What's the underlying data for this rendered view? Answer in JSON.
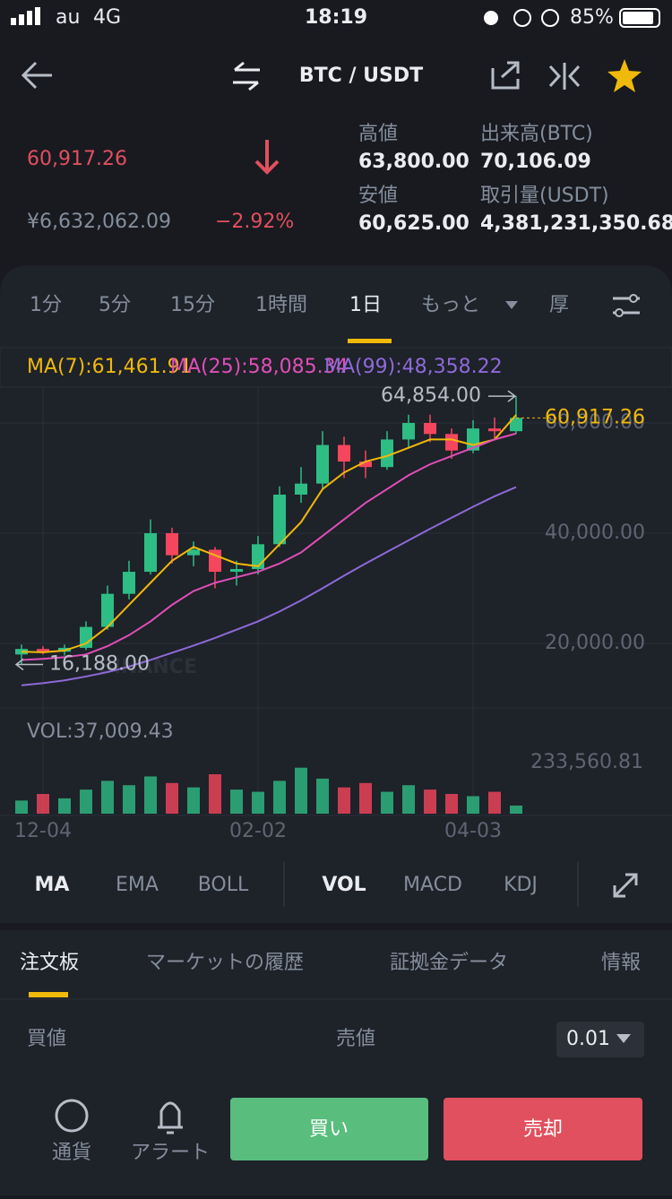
{
  "status_bar": {
    "carrier": "au",
    "network": "4G",
    "time": "18:19",
    "battery": "85%"
  },
  "header": {
    "pair": "BTC / USDT"
  },
  "ticker": {
    "price": "60,917.26",
    "jpy": "¥6,632,062.09",
    "change": "−2.92%",
    "stats": [
      {
        "label": "高値",
        "value": "63,800.00"
      },
      {
        "label": "出来高(BTC)",
        "value": "70,106.09"
      },
      {
        "label": "安値",
        "value": "60,625.00"
      },
      {
        "label": "取引量(USDT)",
        "value": "4,381,231,350.68"
      }
    ]
  },
  "intervals": [
    "1分",
    "5分",
    "15分",
    "1時間",
    "1日",
    "もっと",
    "厚"
  ],
  "chart_data": {
    "type": "candlestick",
    "categories": [
      null,
      "12-04",
      null,
      null,
      null,
      null,
      null,
      null,
      null,
      null,
      null,
      "02-02",
      null,
      null,
      null,
      null,
      null,
      null,
      null,
      null,
      null,
      "04-03",
      null,
      null
    ],
    "open": [
      18000,
      19000,
      18500,
      19200,
      23000,
      29000,
      33000,
      40000,
      36000,
      37000,
      33000,
      33500,
      38000,
      47000,
      49000,
      56000,
      53000,
      52000,
      57000,
      60000,
      58000,
      55000,
      59000,
      58500
    ],
    "high": [
      19800,
      19500,
      19800,
      24000,
      30500,
      35000,
      42500,
      41000,
      38500,
      37500,
      35000,
      39500,
      48500,
      52000,
      58500,
      57500,
      55000,
      58500,
      61500,
      61500,
      59000,
      60500,
      61000,
      64854
    ],
    "low": [
      16188,
      18000,
      17800,
      18800,
      22500,
      28000,
      32500,
      34500,
      34000,
      30000,
      30500,
      32500,
      37500,
      45500,
      48000,
      50000,
      50000,
      51500,
      55500,
      56500,
      53500,
      54500,
      57000,
      58000
    ],
    "close": [
      19000,
      18500,
      19200,
      23000,
      29000,
      33000,
      40000,
      36000,
      37000,
      33000,
      33500,
      38000,
      47000,
      49000,
      56000,
      53000,
      52000,
      57000,
      60000,
      58000,
      55000,
      59000,
      58500,
      60917.26
    ],
    "up_color": "#2ebd85",
    "down_color": "#f6465d",
    "ylim": [
      8300,
      66500
    ],
    "yticks": [
      {
        "value": 20000,
        "label": "20,000.00"
      },
      {
        "value": 40000,
        "label": "40,000.00"
      },
      {
        "value": 60000,
        "label": "60,000.00"
      }
    ],
    "ma": [
      {
        "name": "MA(7):61,461.91",
        "color": "#f0b90b",
        "values": [
          18500,
          18400,
          18700,
          20000,
          23000,
          27000,
          31000,
          35000,
          37500,
          36000,
          34500,
          34000,
          38000,
          42000,
          48000,
          51000,
          53000,
          54000,
          55500,
          57000,
          57000,
          56000,
          57000,
          61461.91
        ]
      },
      {
        "name": "MA(25):58,085.34",
        "color": "#e04fb8",
        "values": [
          17000,
          17200,
          17500,
          18000,
          19500,
          21500,
          24000,
          27000,
          29500,
          31000,
          32000,
          33000,
          34500,
          36500,
          39500,
          42500,
          45500,
          48000,
          50500,
          52500,
          54000,
          55500,
          57000,
          58085.34
        ]
      },
      {
        "name": "MA(99):48,358.22",
        "color": "#8e6ad8",
        "values": [
          12400,
          12800,
          13300,
          14000,
          14800,
          15800,
          17000,
          18300,
          19600,
          21000,
          22500,
          24000,
          25800,
          27800,
          30000,
          32300,
          34500,
          36600,
          38700,
          40800,
          42800,
          44800,
          46700,
          48358.22
        ]
      }
    ],
    "last_price": {
      "value": 60917.26,
      "label": "60,917.26"
    },
    "annotations": [
      {
        "value": 64854,
        "label": "64,854.00"
      },
      {
        "value": 16188,
        "label": "16,188.00"
      }
    ],
    "watermark": "BINANCE",
    "volume": {
      "label": "VOL:37,009.43",
      "ylim": [
        0,
        442000
      ],
      "yticks": [
        {
          "value": 233560.81,
          "label": "233,560.81"
        }
      ],
      "values": [
        60000,
        90000,
        70000,
        110000,
        150000,
        130000,
        170000,
        140000,
        120000,
        180000,
        110000,
        100000,
        150000,
        210000,
        160000,
        120000,
        140000,
        100000,
        130000,
        110000,
        90000,
        80000,
        100000,
        37009.43
      ]
    }
  },
  "indicators": [
    "MA",
    "EMA",
    "BOLL",
    "VOL",
    "MACD",
    "KDJ"
  ],
  "tabs": [
    "注文板",
    "マーケットの履歴",
    "証拠金データ",
    "情報"
  ],
  "order_book": {
    "bid": "買値",
    "ask": "売値",
    "precision": "0.01"
  },
  "footer": {
    "currency": "通貨",
    "alert": "アラート",
    "buy": "買い",
    "sell": "売却"
  }
}
